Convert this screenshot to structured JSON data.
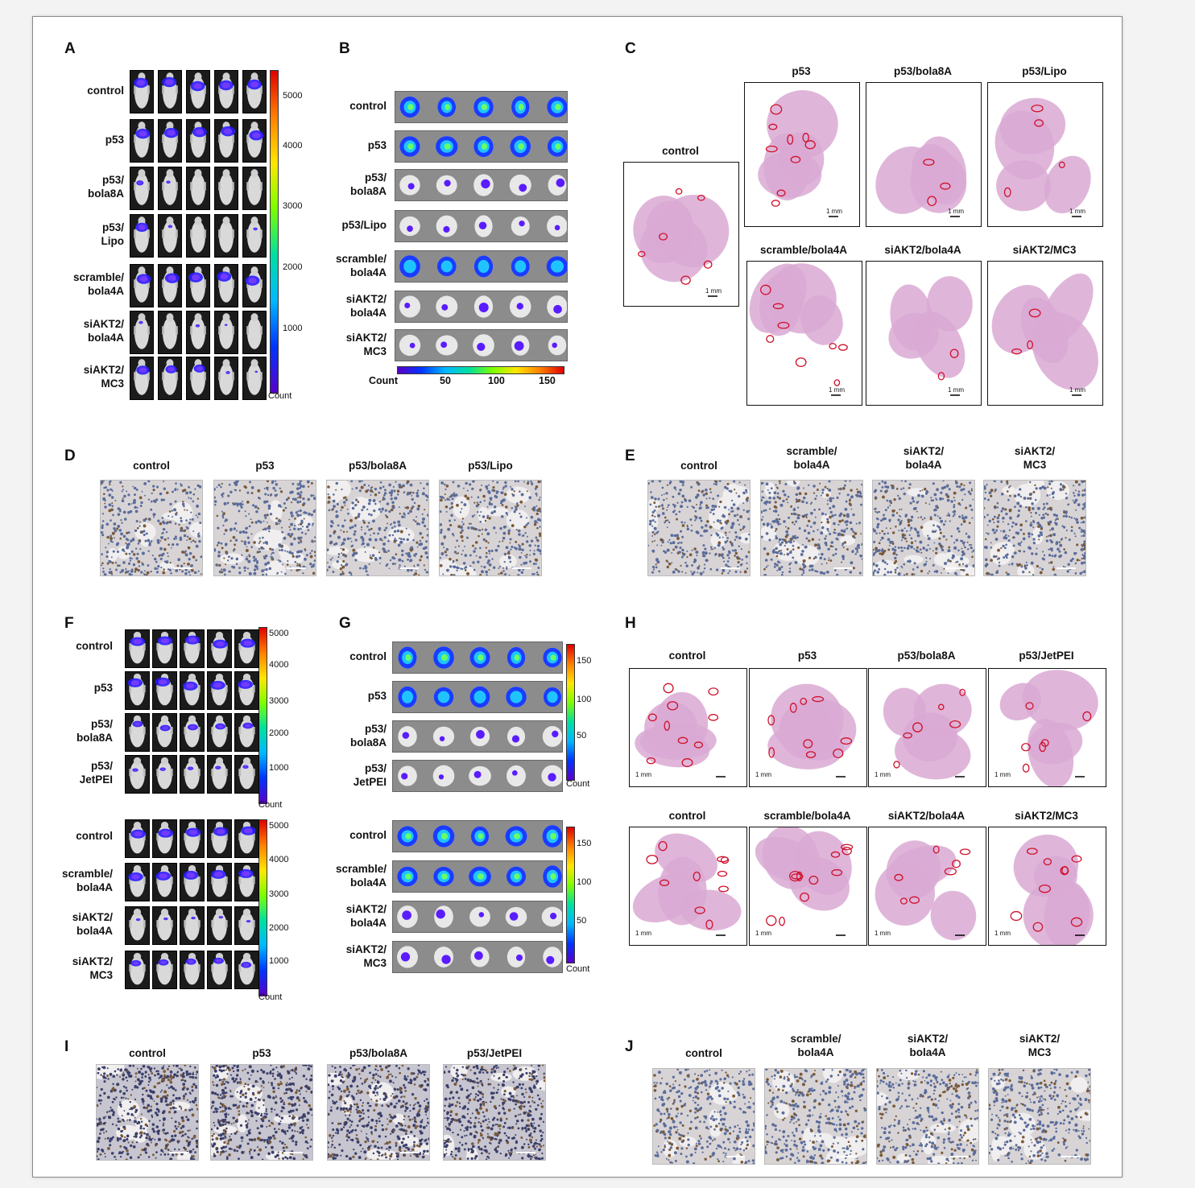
{
  "panels": {
    "A": {
      "letter": "A",
      "rows": [
        "control",
        "p53",
        "p53/\nbola8A",
        "p53/\nLipo",
        "scramble/\nbola4A",
        "siAKT2/\nbola4A",
        "siAKT2/\nMC3"
      ],
      "colorbar_ticks": [
        "5000",
        "4000",
        "3000",
        "2000",
        "1000"
      ],
      "colorbar_label": "Count"
    },
    "B": {
      "letter": "B",
      "rows": [
        "control",
        "p53",
        "p53/\nbola8A",
        "p53/Lipo",
        "scramble/\nbola4A",
        "siAKT2/\nbola4A",
        "siAKT2/\nMC3"
      ],
      "colorbar_label": "Count",
      "colorbar_ticks": [
        "50",
        "100",
        "150"
      ]
    },
    "C": {
      "letter": "C",
      "sections": [
        "control",
        "p53",
        "p53/bola8A",
        "p53/Lipo",
        "scramble/bola4A",
        "siAKT2/bola4A",
        "siAKT2/MC3"
      ],
      "scale": "1 mm"
    },
    "D": {
      "letter": "D",
      "cols": [
        "control",
        "p53",
        "p53/bola8A",
        "p53/Lipo"
      ]
    },
    "E": {
      "letter": "E",
      "cols": [
        "control",
        "scramble/\nbola4A",
        "siAKT2/\nbola4A",
        "siAKT2/\nMC3"
      ]
    },
    "F": {
      "letter": "F",
      "rows_top": [
        "control",
        "p53",
        "p53/\nbola8A",
        "p53/\nJetPEI"
      ],
      "rows_bottom": [
        "control",
        "scramble/\nbola4A",
        "siAKT2/\nbola4A",
        "siAKT2/\nMC3"
      ],
      "colorbar_ticks": [
        "5000",
        "4000",
        "3000",
        "2000",
        "1000"
      ],
      "colorbar_label": "Count"
    },
    "G": {
      "letter": "G",
      "rows_top": [
        "control",
        "p53",
        "p53/\nbola8A",
        "p53/\nJetPEI"
      ],
      "rows_bottom": [
        "control",
        "scramble/\nbola4A",
        "siAKT2/\nbola4A",
        "siAKT2/\nMC3"
      ],
      "colorbar_ticks": [
        "150",
        "100",
        "50"
      ],
      "colorbar_label": "Count"
    },
    "H": {
      "letter": "H",
      "top": [
        "control",
        "p53",
        "p53/bola8A",
        "p53/JetPEI"
      ],
      "bottom": [
        "control",
        "scramble/bola4A",
        "siAKT2/bola4A",
        "siAKT2/MC3"
      ],
      "scale": "1 mm"
    },
    "I": {
      "letter": "I",
      "cols": [
        "control",
        "p53",
        "p53/bola8A",
        "p53/JetPEI"
      ]
    },
    "J": {
      "letter": "J",
      "cols": [
        "control",
        "scramble/\nbola4A",
        "siAKT2/\nbola4A",
        "siAKT2/\nMC3"
      ]
    }
  }
}
